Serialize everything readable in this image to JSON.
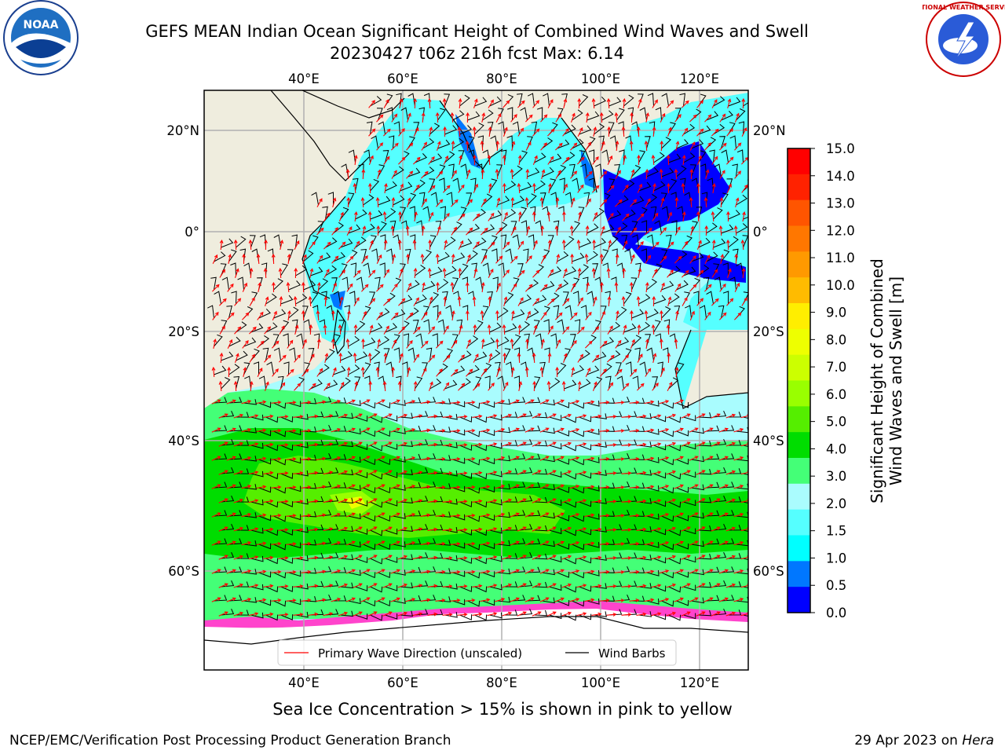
{
  "title_line1": "GEFS MEAN Indian Ocean Significant Height of Combined Wind Waves and Swell",
  "title_line2": "20230427 t06z 216h fcst   Max: 6.14",
  "logos": {
    "left": "NOAA",
    "right": "NATIONAL WEATHER SERVICE"
  },
  "map": {
    "lon_ticks": [
      "40°E",
      "60°E",
      "80°E",
      "100°E",
      "120°E"
    ],
    "lat_ticks": [
      "20°N",
      "0°",
      "20°S",
      "40°S",
      "60°S"
    ],
    "land_color": "#efedde",
    "ocean_dominant_color": "#a9fcfe",
    "barb_color": "#000000",
    "wave_arrow_color": "#ff0000"
  },
  "legend": {
    "wave_label": "Primary Wave Direction (unscaled)",
    "barb_label": "Wind Barbs"
  },
  "colorbar": {
    "title_line1": "Significant Height of Combined",
    "title_line2": "Wind Waves and Swell [m]",
    "levels": [
      "15.0",
      "14.0",
      "13.0",
      "12.0",
      "11.0",
      "10.0",
      "9.0",
      "8.0",
      "7.0",
      "6.0",
      "5.0",
      "4.0",
      "3.0",
      "2.0",
      "1.5",
      "1.0",
      "0.5",
      "0.0"
    ],
    "colors": [
      "#ff0000",
      "#ff2200",
      "#ff5500",
      "#ff7700",
      "#ff9900",
      "#ffbb00",
      "#ffee00",
      "#eeff00",
      "#ccff00",
      "#99ff00",
      "#55ee00",
      "#00dd00",
      "#44ff77",
      "#aafcfe",
      "#55ffff",
      "#00ffff",
      "#0077ff",
      "#0000ff"
    ]
  },
  "ice_note": "Sea Ice Concentration > 15% is shown in pink to yellow",
  "footer_left": "NCEP/EMC/Verification Post Processing Product Generation Branch",
  "footer_right_prefix": "29 Apr 2023 on",
  "footer_right_host": "Hera"
}
